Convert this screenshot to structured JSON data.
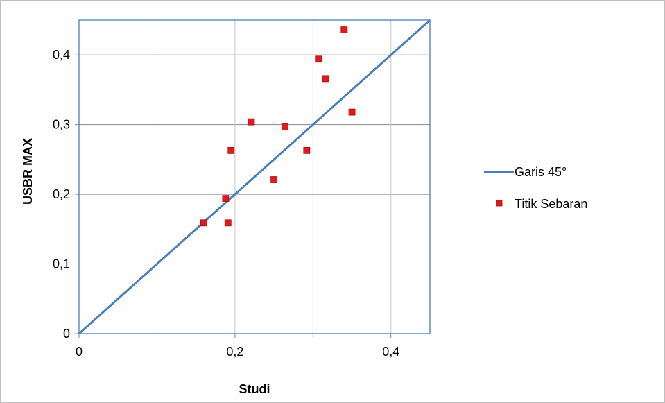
{
  "chart_data": {
    "type": "scatter",
    "title": "",
    "xlabel": "Studi",
    "ylabel": "USBR MAX",
    "xlim": [
      0,
      0.45
    ],
    "ylim": [
      0,
      0.45
    ],
    "x_ticks": [
      0,
      0.2,
      0.4
    ],
    "x_tick_labels": [
      "0",
      "0,2",
      "0,4"
    ],
    "y_ticks": [
      0,
      0.1,
      0.2,
      0.3,
      0.4
    ],
    "y_tick_labels": [
      "0",
      "0,1",
      "0,2",
      "0,3",
      "0,4"
    ],
    "grid": true,
    "legend_position": "right",
    "series": [
      {
        "name": "Garis 45°",
        "kind": "line",
        "color": "#4a7ebb",
        "x": [
          0,
          0.45
        ],
        "y": [
          0,
          0.45
        ]
      },
      {
        "name": "Titik Sebaran",
        "kind": "scatter",
        "marker": "square",
        "color": "#e31a1c",
        "points": [
          [
            0.16,
            0.159
          ],
          [
            0.188,
            0.194
          ],
          [
            0.191,
            0.159
          ],
          [
            0.195,
            0.263
          ],
          [
            0.221,
            0.304
          ],
          [
            0.25,
            0.221
          ],
          [
            0.264,
            0.297
          ],
          [
            0.292,
            0.263
          ],
          [
            0.307,
            0.394
          ],
          [
            0.316,
            0.366
          ],
          [
            0.34,
            0.436
          ],
          [
            0.35,
            0.318
          ]
        ]
      }
    ]
  }
}
